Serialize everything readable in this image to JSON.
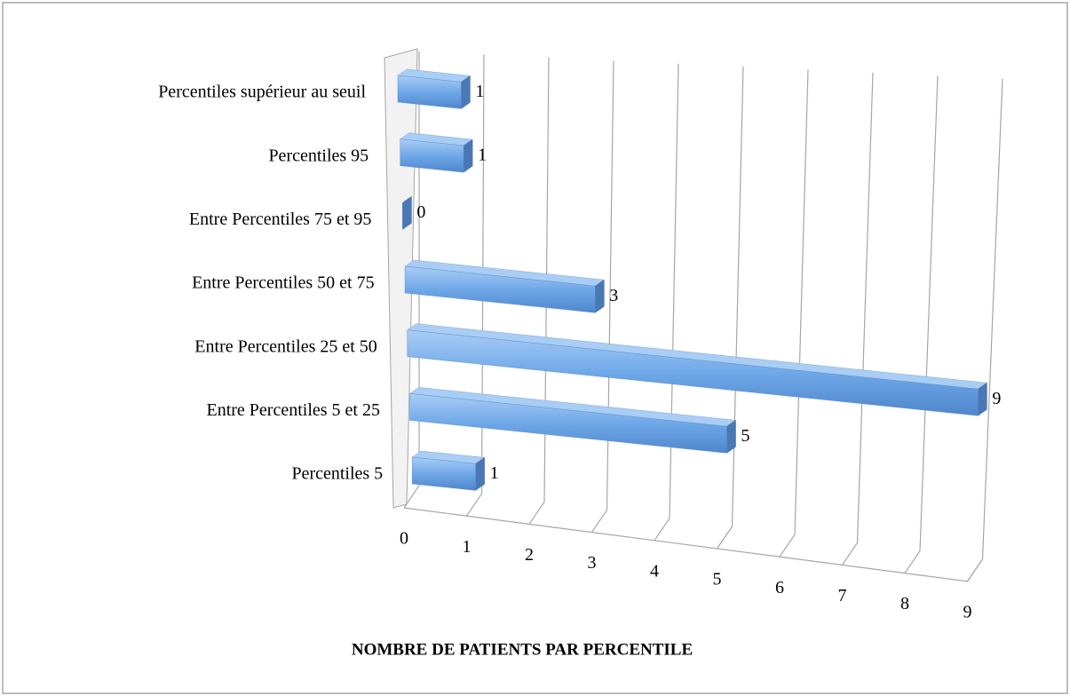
{
  "chart_data": {
    "type": "bar3d_horizontal",
    "categories": [
      "Percentiles supérieur au seuil",
      "Percentiles 95",
      "Entre Percentiles 75 et 95",
      "Entre Percentiles 50 et 75",
      "Entre Percentiles 25 et 50",
      "Entre Percentiles 5 et 25",
      "Percentiles 5"
    ],
    "values": [
      1,
      1,
      0,
      3,
      9,
      5,
      1
    ],
    "color": "#6fa8e8",
    "x_label": "NOMBRE DE PATIENTS PAR PERCENTILE",
    "xlim": [
      0,
      9
    ],
    "xticks": [
      0,
      1,
      2,
      3,
      4,
      5,
      6,
      7,
      8,
      9
    ],
    "grid": true
  }
}
